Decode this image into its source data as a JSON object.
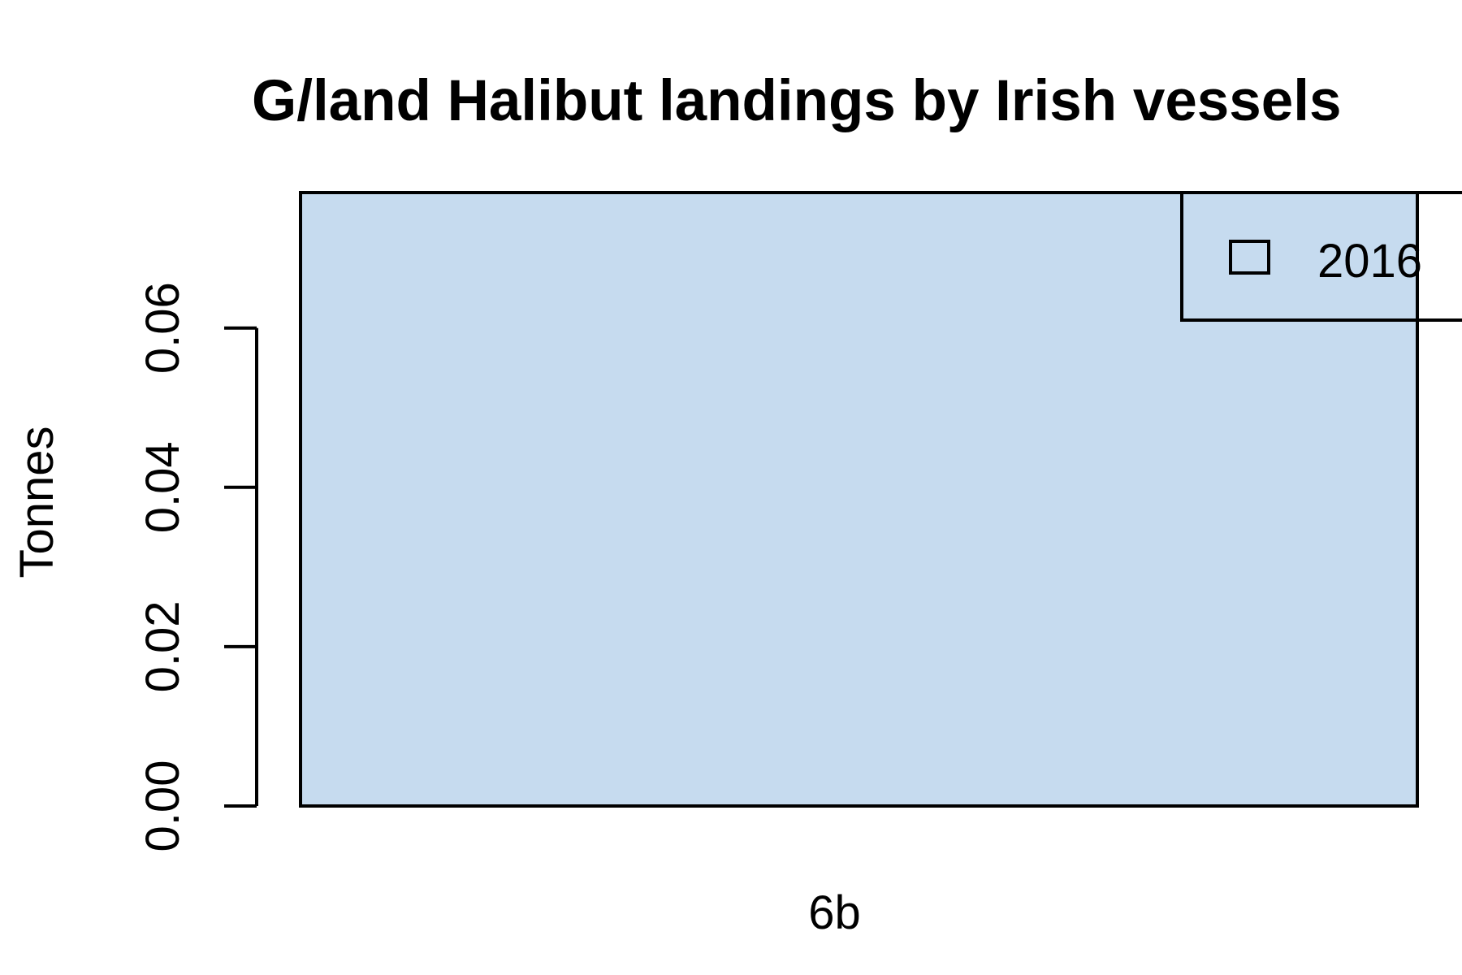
{
  "chart_data": {
    "type": "bar",
    "title": "G/land Halibut landings by Irish vessels",
    "xlabel": "",
    "ylabel": "Tonnes",
    "categories": [
      "6b"
    ],
    "series": [
      {
        "name": "2016",
        "values": [
          0.077
        ],
        "color": "#c6dbef"
      }
    ],
    "ylim": [
      0,
      0.077
    ],
    "yticks": [
      0.0,
      0.02,
      0.04,
      0.06
    ],
    "ytick_labels": [
      "0.00",
      "0.02",
      "0.04",
      "0.06"
    ],
    "grid": false,
    "legend": {
      "position": "top-right",
      "entries": [
        "2016"
      ]
    }
  }
}
